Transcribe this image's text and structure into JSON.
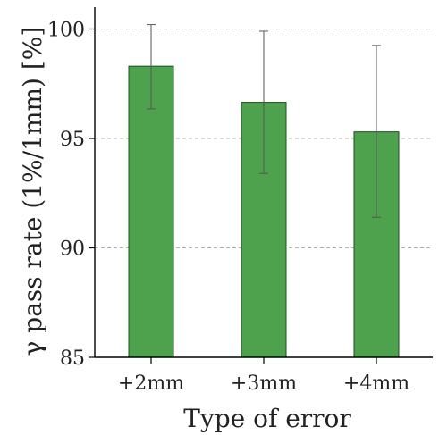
{
  "chart_data": {
    "type": "bar",
    "title": "",
    "xlabel": "Type of error",
    "ylabel": "γ pass rate (1%/1mm) [%]",
    "categories": [
      "+2mm",
      "+3mm",
      "+4mm"
    ],
    "series": [
      {
        "values": [
          98.3,
          96.65,
          95.3
        ],
        "error_low": [
          96.35,
          93.4,
          91.4
        ],
        "error_high": [
          100.2,
          99.9,
          99.25
        ]
      }
    ],
    "ylim": [
      85,
      101
    ],
    "yticks": [
      85,
      90,
      95,
      100
    ],
    "ytick_labels": [
      "85",
      "90",
      "95",
      "100"
    ],
    "grid": true,
    "legend": false,
    "colors": {
      "bar_fill": "#4ea24e",
      "bar_stroke": "#1f4f1f",
      "error_bar": "#555555",
      "grid": "#999999",
      "axis": "#000000"
    }
  }
}
